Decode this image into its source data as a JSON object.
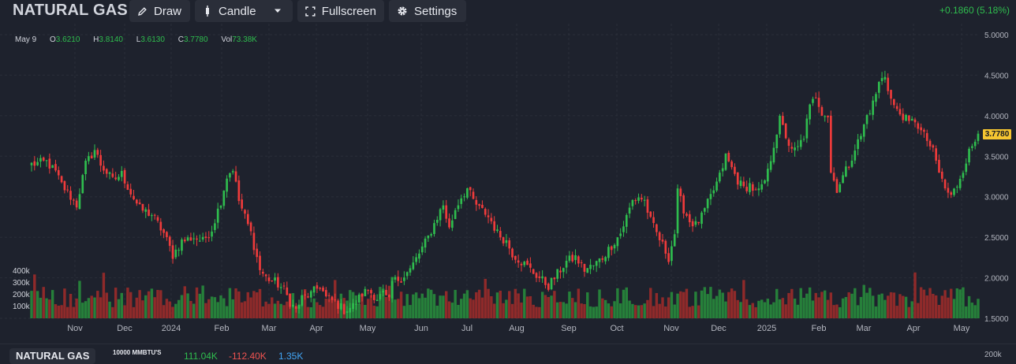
{
  "toolbar": {
    "symbol": "NATURAL GAS",
    "draw_label": "Draw",
    "candle_label": "Candle",
    "fullscreen_label": "Fullscreen",
    "settings_label": "Settings",
    "change_text": "+0.1860 (5.18%)"
  },
  "ohlc": {
    "date": "May 9",
    "o_label": "O",
    "o_value": "3.6210",
    "h_label": "H",
    "h_value": "3.8140",
    "l_label": "L",
    "l_value": "3.6130",
    "c_label": "C",
    "c_value": "3.7780",
    "vol_label": "Vol",
    "vol_value": "73.38K"
  },
  "last_price_label": "3.7780",
  "bottom_panel": {
    "tab_label": "NATURAL GAS",
    "unit_label": "10000 MMBTU'S",
    "value_1": "111.04K",
    "value_2": "-112.40K",
    "value_3": "1.35K",
    "axis_label": "200k"
  },
  "colors": {
    "background": "#1e222d",
    "up": "#2fbd4e",
    "down": "#ef3b3b",
    "vol_up": "#26803a",
    "vol_down": "#8f2a2a",
    "grid": "#2a2e39",
    "badge": "#f5c531"
  },
  "chart_data": {
    "type": "candlestick",
    "ylim": [
      1.5,
      5.0
    ],
    "price_ticks": [
      "5.0000",
      "4.5000",
      "4.0000",
      "3.5000",
      "3.0000",
      "2.5000",
      "2.0000",
      "1.5000"
    ],
    "volume_ticks": [
      "400k",
      "300k",
      "200k",
      "100k"
    ],
    "x_tick_labels": [
      "Nov",
      "Dec",
      "2024",
      "Feb",
      "Mar",
      "Apr",
      "May",
      "Jun",
      "Jul",
      "Aug",
      "Sep",
      "Oct",
      "Nov",
      "Dec",
      "2025",
      "Feb",
      "Mar",
      "Apr",
      "May"
    ],
    "close_path": [
      [
        0,
        3.4
      ],
      [
        5,
        3.43
      ],
      [
        8,
        3.3
      ],
      [
        10,
        3.15
      ],
      [
        13,
        3.0
      ],
      [
        15,
        2.9
      ],
      [
        18,
        3.4
      ],
      [
        21,
        3.58
      ],
      [
        23,
        3.4
      ],
      [
        27,
        3.2
      ],
      [
        30,
        3.28
      ],
      [
        33,
        3.05
      ],
      [
        36,
        2.85
      ],
      [
        40,
        2.78
      ],
      [
        44,
        2.55
      ],
      [
        47,
        2.28
      ],
      [
        50,
        2.45
      ],
      [
        54,
        2.5
      ],
      [
        57,
        2.45
      ],
      [
        60,
        2.6
      ],
      [
        63,
        2.95
      ],
      [
        65,
        3.25
      ],
      [
        67,
        3.35
      ],
      [
        69,
        2.95
      ],
      [
        71,
        2.75
      ],
      [
        73,
        2.55
      ],
      [
        76,
        2.1
      ],
      [
        78,
        2.0
      ],
      [
        81,
        1.95
      ],
      [
        84,
        1.85
      ],
      [
        86,
        1.7
      ],
      [
        88,
        1.6
      ],
      [
        90,
        1.75
      ],
      [
        93,
        1.8
      ],
      [
        96,
        1.9
      ],
      [
        98,
        1.75
      ],
      [
        101,
        1.7
      ],
      [
        104,
        1.6
      ],
      [
        107,
        1.65
      ],
      [
        110,
        1.8
      ],
      [
        112,
        1.85
      ],
      [
        115,
        1.75
      ],
      [
        117,
        1.8
      ],
      [
        119,
        1.7
      ],
      [
        120,
        1.95
      ],
      [
        123,
        2.0
      ],
      [
        126,
        2.1
      ],
      [
        129,
        2.3
      ],
      [
        132,
        2.5
      ],
      [
        135,
        2.75
      ],
      [
        137,
        2.9
      ],
      [
        139,
        2.6
      ],
      [
        141,
        2.85
      ],
      [
        143,
        3.0
      ],
      [
        145,
        3.1
      ],
      [
        147,
        2.95
      ],
      [
        149,
        2.85
      ],
      [
        151,
        2.8
      ],
      [
        153,
        2.7
      ],
      [
        155,
        2.55
      ],
      [
        158,
        2.45
      ],
      [
        160,
        2.3
      ],
      [
        163,
        2.2
      ],
      [
        166,
        2.1
      ],
      [
        169,
        2.0
      ],
      [
        172,
        1.9
      ],
      [
        175,
        2.05
      ],
      [
        178,
        2.2
      ],
      [
        181,
        2.25
      ],
      [
        184,
        2.1
      ],
      [
        187,
        2.15
      ],
      [
        190,
        2.25
      ],
      [
        193,
        2.4
      ],
      [
        196,
        2.55
      ],
      [
        198,
        2.75
      ],
      [
        200,
        2.95
      ],
      [
        202,
        3.0
      ],
      [
        204,
        2.95
      ],
      [
        206,
        2.7
      ],
      [
        208,
        2.55
      ],
      [
        210,
        2.4
      ],
      [
        212,
        2.25
      ],
      [
        214,
        2.55
      ],
      [
        215,
        3.05
      ],
      [
        217,
        2.85
      ],
      [
        219,
        2.7
      ],
      [
        221,
        2.65
      ],
      [
        223,
        2.75
      ],
      [
        226,
        3.0
      ],
      [
        229,
        3.25
      ],
      [
        231,
        3.5
      ],
      [
        233,
        3.35
      ],
      [
        235,
        3.2
      ],
      [
        237,
        3.1
      ],
      [
        239,
        3.15
      ],
      [
        241,
        3.05
      ],
      [
        243,
        3.1
      ],
      [
        245,
        3.3
      ],
      [
        247,
        3.65
      ],
      [
        249,
        3.95
      ],
      [
        251,
        3.75
      ],
      [
        253,
        3.55
      ],
      [
        255,
        3.6
      ],
      [
        257,
        3.75
      ],
      [
        259,
        4.1
      ],
      [
        261,
        4.25
      ],
      [
        263,
        4.05
      ],
      [
        265,
        4.0
      ],
      [
        266,
        3.3
      ],
      [
        268,
        3.1
      ],
      [
        270,
        3.25
      ],
      [
        272,
        3.4
      ],
      [
        274,
        3.6
      ],
      [
        276,
        3.75
      ],
      [
        278,
        4.0
      ],
      [
        280,
        4.15
      ],
      [
        282,
        4.4
      ],
      [
        284,
        4.5
      ],
      [
        286,
        4.2
      ],
      [
        288,
        4.05
      ],
      [
        290,
        4.0
      ],
      [
        292,
        3.9
      ],
      [
        294,
        3.95
      ],
      [
        296,
        3.8
      ],
      [
        298,
        3.7
      ],
      [
        300,
        3.55
      ],
      [
        302,
        3.3
      ],
      [
        304,
        3.1
      ],
      [
        306,
        3.0
      ],
      [
        308,
        3.15
      ],
      [
        310,
        3.35
      ],
      [
        312,
        3.55
      ],
      [
        314,
        3.7
      ],
      [
        315,
        3.78
      ]
    ],
    "x_range": [
      0,
      315
    ],
    "note_last": "last candle close 3.7780"
  }
}
